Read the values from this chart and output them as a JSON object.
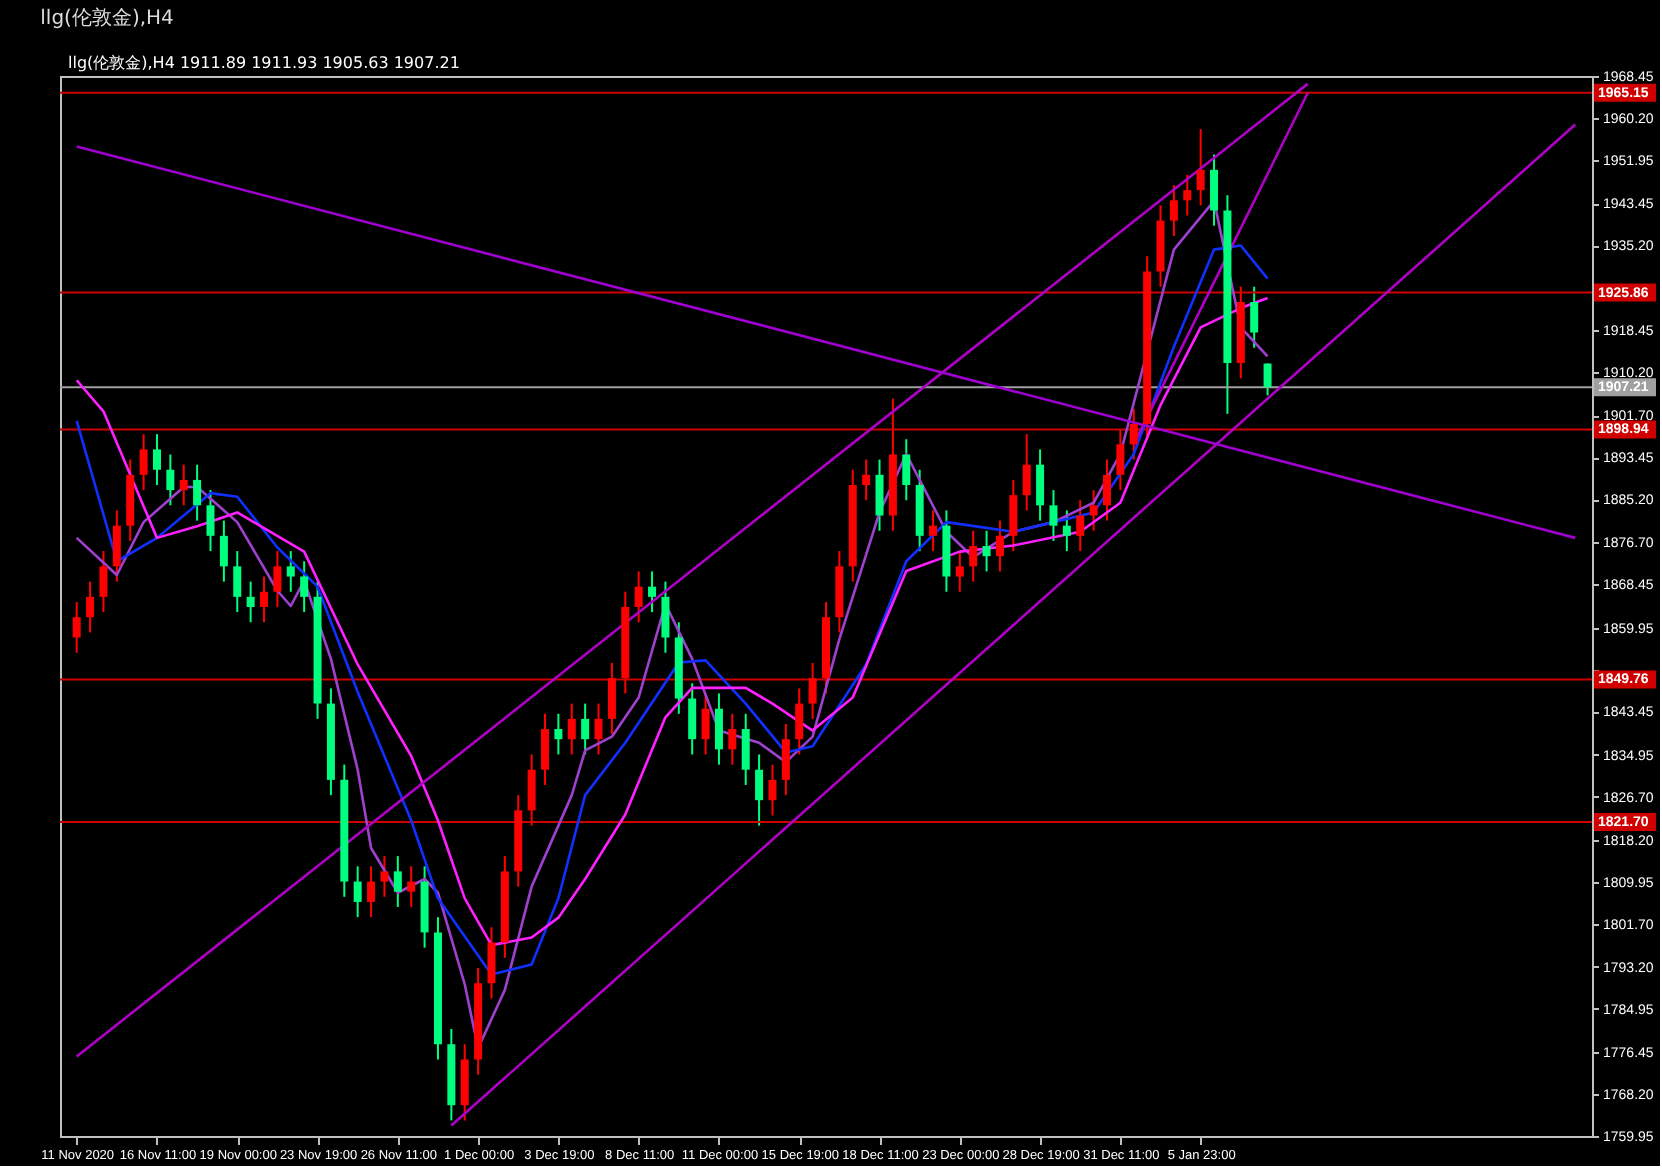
{
  "chart_data": {
    "type": "candlestick",
    "title": "llg(伦敦金),H4",
    "annotations": [
      "llg(伦敦金),H4  1911.89 1911.93 1905.63 1907.21"
    ],
    "categories": [
      "11 Nov 2020",
      null,
      null,
      null,
      null,
      null,
      "16 Nov 11:00",
      null,
      null,
      null,
      null,
      null,
      "19 Nov 00:00",
      null,
      null,
      null,
      null,
      null,
      "23 Nov 19:00",
      null,
      null,
      null,
      null,
      null,
      "26 Nov 11:00",
      null,
      null,
      null,
      null,
      null,
      "1 Dec 00:00",
      null,
      null,
      null,
      null,
      null,
      "3 Dec 19:00",
      null,
      null,
      null,
      null,
      null,
      "8 Dec 11:00",
      null,
      null,
      null,
      null,
      null,
      "11 Dec 00:00",
      null,
      null,
      null,
      null,
      null,
      "15 Dec 19:00",
      null,
      null,
      null,
      null,
      null,
      "18 Dec 11:00",
      null,
      null,
      null,
      null,
      null,
      "23 Dec 00:00",
      null,
      null,
      null,
      null,
      null,
      "28 Dec 19:00",
      null,
      null,
      null,
      null,
      null,
      "31 Dec 11:00",
      null,
      null,
      null,
      null,
      null,
      "5 Jan 23:00",
      null,
      null,
      null,
      null,
      null,
      null,
      null,
      null,
      null,
      null,
      null,
      null,
      null,
      null,
      null,
      null,
      null,
      null,
      null,
      null,
      null,
      null,
      null,
      null,
      null,
      null,
      null,
      null
    ],
    "ohlc": [
      [
        1858,
        1865,
        1855,
        1862
      ],
      [
        1862,
        1869,
        1859,
        1866
      ],
      [
        1866,
        1875,
        1863,
        1872
      ],
      [
        1872,
        1883,
        1869,
        1880
      ],
      [
        1880,
        1893,
        1877,
        1890
      ],
      [
        1890,
        1898,
        1887,
        1895
      ],
      [
        1895,
        1898,
        1888,
        1891
      ],
      [
        1891,
        1894,
        1884,
        1887
      ],
      [
        1887,
        1892,
        1884,
        1889
      ],
      [
        1889,
        1892,
        1881,
        1884
      ],
      [
        1884,
        1887,
        1875,
        1878
      ],
      [
        1878,
        1881,
        1869,
        1872
      ],
      [
        1872,
        1875,
        1863,
        1866
      ],
      [
        1866,
        1869,
        1861,
        1864
      ],
      [
        1864,
        1870,
        1861,
        1867
      ],
      [
        1867,
        1875,
        1864,
        1872
      ],
      [
        1872,
        1875,
        1867,
        1870
      ],
      [
        1870,
        1873,
        1863,
        1866
      ],
      [
        1866,
        1869,
        1842,
        1845
      ],
      [
        1845,
        1848,
        1827,
        1830
      ],
      [
        1830,
        1833,
        1807,
        1810
      ],
      [
        1810,
        1813,
        1803,
        1806
      ],
      [
        1806,
        1813,
        1803,
        1810
      ],
      [
        1810,
        1815,
        1807,
        1812
      ],
      [
        1812,
        1815,
        1805,
        1808
      ],
      [
        1808,
        1813,
        1805,
        1810
      ],
      [
        1810,
        1813,
        1797,
        1800
      ],
      [
        1800,
        1803,
        1775,
        1778
      ],
      [
        1778,
        1781,
        1763,
        1766
      ],
      [
        1766,
        1778,
        1763,
        1775
      ],
      [
        1775,
        1793,
        1772,
        1790
      ],
      [
        1790,
        1801,
        1787,
        1798
      ],
      [
        1798,
        1815,
        1795,
        1812
      ],
      [
        1812,
        1827,
        1809,
        1824
      ],
      [
        1824,
        1835,
        1821,
        1832
      ],
      [
        1832,
        1843,
        1829,
        1840
      ],
      [
        1840,
        1843,
        1835,
        1838
      ],
      [
        1838,
        1845,
        1835,
        1842
      ],
      [
        1842,
        1845,
        1835,
        1838
      ],
      [
        1838,
        1845,
        1835,
        1842
      ],
      [
        1842,
        1853,
        1839,
        1850
      ],
      [
        1850,
        1867,
        1847,
        1864
      ],
      [
        1864,
        1871,
        1861,
        1868
      ],
      [
        1868,
        1871,
        1863,
        1866
      ],
      [
        1866,
        1869,
        1855,
        1858
      ],
      [
        1858,
        1861,
        1843,
        1846
      ],
      [
        1846,
        1849,
        1835,
        1838
      ],
      [
        1838,
        1847,
        1835,
        1844
      ],
      [
        1844,
        1847,
        1833,
        1836
      ],
      [
        1836,
        1843,
        1833,
        1840
      ],
      [
        1840,
        1843,
        1829,
        1832
      ],
      [
        1832,
        1835,
        1821,
        1826
      ],
      [
        1826,
        1833,
        1823,
        1830
      ],
      [
        1830,
        1841,
        1827,
        1838
      ],
      [
        1838,
        1848,
        1835,
        1845
      ],
      [
        1845,
        1853,
        1842,
        1850
      ],
      [
        1850,
        1865,
        1847,
        1862
      ],
      [
        1862,
        1875,
        1859,
        1872
      ],
      [
        1872,
        1891,
        1869,
        1888
      ],
      [
        1888,
        1893,
        1885,
        1890
      ],
      [
        1890,
        1893,
        1879,
        1882
      ],
      [
        1882,
        1905,
        1879,
        1894
      ],
      [
        1894,
        1897,
        1885,
        1888
      ],
      [
        1888,
        1891,
        1875,
        1878
      ],
      [
        1878,
        1883,
        1875,
        1880
      ],
      [
        1880,
        1883,
        1867,
        1870
      ],
      [
        1870,
        1875,
        1867,
        1872
      ],
      [
        1872,
        1879,
        1869,
        1876
      ],
      [
        1876,
        1879,
        1871,
        1874
      ],
      [
        1874,
        1881,
        1871,
        1878
      ],
      [
        1878,
        1889,
        1875,
        1886
      ],
      [
        1886,
        1898,
        1883,
        1892
      ],
      [
        1892,
        1895,
        1881,
        1884
      ],
      [
        1884,
        1887,
        1877,
        1880
      ],
      [
        1880,
        1883,
        1875,
        1878
      ],
      [
        1878,
        1885,
        1875,
        1882
      ],
      [
        1882,
        1887,
        1879,
        1884
      ],
      [
        1884,
        1893,
        1881,
        1890
      ],
      [
        1890,
        1899,
        1887,
        1896
      ],
      [
        1896,
        1903,
        1893,
        1900
      ],
      [
        1900,
        1933,
        1897,
        1930
      ],
      [
        1930,
        1943,
        1927,
        1940
      ],
      [
        1940,
        1947,
        1937,
        1944
      ],
      [
        1944,
        1949,
        1941,
        1946
      ],
      [
        1946,
        1958,
        1943,
        1950
      ],
      [
        1950,
        1953,
        1939,
        1942
      ],
      [
        1942,
        1945,
        1902,
        1912
      ],
      [
        1912,
        1927,
        1909,
        1924
      ],
      [
        1924,
        1927,
        1915,
        1918
      ],
      [
        1911.89,
        1911.93,
        1905.63,
        1907.21
      ],
      null,
      null,
      null,
      null,
      null,
      null,
      null,
      null,
      null,
      null,
      null,
      null,
      null,
      null,
      null,
      null,
      null,
      null,
      null,
      null,
      null,
      null,
      null
    ],
    "colors": [
      "#ff0000",
      "#ff0000",
      "#ff0000",
      "#ff0000",
      "#ff0000",
      "#ff0000",
      "#00ff7f",
      "#00ff7f",
      "#ff0000",
      "#00ff7f",
      "#00ff7f",
      "#00ff7f",
      "#00ff7f",
      "#00ff7f",
      "#ff0000",
      "#ff0000",
      "#00ff7f",
      "#00ff7f",
      "#00ff7f",
      "#00ff7f",
      "#00ff7f",
      "#00ff7f",
      "#ff0000",
      "#ff0000",
      "#00ff7f",
      "#ff0000",
      "#00ff7f",
      "#00ff7f",
      "#00ff7f",
      "#ff0000",
      "#ff0000",
      "#ff0000",
      "#ff0000",
      "#ff0000",
      "#ff0000",
      "#ff0000",
      "#00ff7f",
      "#ff0000",
      "#00ff7f",
      "#ff0000",
      "#ff0000",
      "#ff0000",
      "#ff0000",
      "#00ff7f",
      "#00ff7f",
      "#00ff7f",
      "#00ff7f",
      "#ff0000",
      "#00ff7f",
      "#ff0000",
      "#00ff7f",
      "#00ff7f",
      "#ff0000",
      "#ff0000",
      "#ff0000",
      "#ff0000",
      "#ff0000",
      "#ff0000",
      "#ff0000",
      "#ff0000",
      "#00ff7f",
      "#ff0000",
      "#00ff7f",
      "#00ff7f",
      "#ff0000",
      "#00ff7f",
      "#ff0000",
      "#ff0000",
      "#00ff7f",
      "#ff0000",
      "#ff0000",
      "#ff0000",
      "#00ff7f",
      "#00ff7f",
      "#00ff7f",
      "#ff0000",
      "#ff0000",
      "#ff0000",
      "#ff0000",
      "#ff0000",
      "#ff0000",
      "#ff0000",
      "#ff0000",
      "#ff0000",
      "#ff0000",
      "#00ff7f",
      "#00ff7f",
      "#ff0000",
      "#00ff7f",
      "#00ff7f",
      null,
      null,
      null,
      null,
      null,
      null,
      null,
      null,
      null,
      null,
      null,
      null,
      null,
      null,
      null,
      null,
      null,
      null,
      null,
      null,
      null,
      null,
      null
    ],
    "series": [
      {
        "type": "line",
        "color": "#a040d0",
        "values": [
          1877.6,
          null,
          null,
          1870.3,
          null,
          1880.7,
          null,
          null,
          1887.6,
          1887.6,
          null,
          null,
          1880.7,
          null,
          null,
          1867.2,
          1864.2,
          1869.2,
          null,
          1853.8,
          null,
          1832.0,
          1816.6,
          null,
          1807.8,
          null,
          1810.5,
          1807.8,
          null,
          1789.8,
          1777.2,
          null,
          1788.7,
          null,
          1809.0,
          null,
          null,
          1827.0,
          1835.8,
          null,
          1838.5,
          null,
          1846.2,
          null,
          1864.6,
          null,
          1853.8,
          null,
          1839.7,
          null,
          null,
          1837.3,
          null,
          1833.5,
          null,
          1838.5,
          null,
          1857.7,
          null,
          null,
          1882.6,
          null,
          1894.1,
          null,
          null,
          1878.8,
          null,
          1873.8,
          null,
          null,
          1878.8,
          null,
          null,
          1880.7,
          null,
          null,
          1884.5,
          null,
          1894.1,
          null,
          null,
          null,
          1934.3,
          null,
          null,
          1943.9,
          null,
          1919.0,
          null,
          1913.3,
          null,
          null,
          null,
          null,
          null,
          null,
          null,
          null,
          null,
          null,
          null,
          null,
          null,
          null,
          null,
          null,
          null,
          null,
          null,
          null,
          null,
          null,
          null
        ]
      },
      {
        "type": "line",
        "color": "#1030ff",
        "values": [
          1900.6,
          null,
          null,
          1873.0,
          null,
          null,
          1877.6,
          null,
          null,
          null,
          1886.4,
          null,
          1885.7,
          null,
          null,
          1875.7,
          null,
          null,
          1868.0,
          null,
          null,
          1847.3,
          null,
          null,
          null,
          1822.0,
          null,
          1806.7,
          null,
          null,
          null,
          1791.7,
          null,
          null,
          1793.7,
          null,
          1806.7,
          null,
          1827.0,
          null,
          null,
          1837.3,
          null,
          null,
          null,
          1853.1,
          null,
          1853.5,
          null,
          null,
          1845.0,
          null,
          null,
          1835.4,
          null,
          1836.6,
          null,
          null,
          null,
          1852.7,
          null,
          null,
          1873.0,
          null,
          null,
          1880.7,
          null,
          null,
          null,
          null,
          1878.8,
          null,
          null,
          null,
          null,
          null,
          1882.6,
          null,
          null,
          1894.1,
          null,
          null,
          1915.2,
          null,
          null,
          1934.3,
          null,
          1935.1,
          null,
          1928.6,
          null,
          null,
          null,
          null,
          null,
          null,
          null,
          null,
          null,
          null,
          null,
          null,
          null,
          null,
          null,
          null,
          null,
          null,
          null,
          null,
          null,
          null,
          null
        ]
      },
      {
        "type": "line",
        "color": "#ff20ff",
        "values": [
          1908.6,
          null,
          1902.5,
          null,
          null,
          null,
          1877.6,
          null,
          null,
          1879.9,
          null,
          null,
          1882.6,
          null,
          null,
          null,
          null,
          1874.9,
          null,
          null,
          null,
          1852.7,
          null,
          null,
          null,
          1834.7,
          null,
          1822.0,
          null,
          1806.7,
          null,
          1797.5,
          null,
          null,
          1799.0,
          null,
          1802.9,
          null,
          1810.5,
          null,
          null,
          1823.2,
          null,
          null,
          1842.3,
          null,
          1848.1,
          null,
          null,
          null,
          1848.1,
          null,
          1845.0,
          null,
          null,
          1839.7,
          null,
          null,
          1846.2,
          null,
          null,
          null,
          1871.1,
          null,
          null,
          null,
          1874.9,
          null,
          null,
          null,
          1876.1,
          null,
          null,
          null,
          null,
          1878.8,
          null,
          null,
          1884.5,
          null,
          null,
          1903.7,
          null,
          null,
          1919.0,
          null,
          null,
          1922.8,
          null,
          1924.8,
          null,
          null,
          null,
          null,
          null,
          null,
          null,
          null,
          null,
          null,
          null,
          null,
          null,
          null,
          null,
          null,
          null,
          null,
          null,
          null,
          null,
          null,
          null
        ]
      },
      {
        "type": "line",
        "color": "#b000c8",
        "values": [
          1775.6,
          null,
          null,
          null,
          null,
          null,
          null,
          null,
          null,
          null,
          null,
          null,
          null,
          null,
          null,
          null,
          null,
          null,
          null,
          null,
          null,
          null,
          null,
          null,
          null,
          null,
          null,
          null,
          null,
          null,
          null,
          null,
          null,
          null,
          null,
          null,
          null,
          null,
          null,
          null,
          null,
          null,
          null,
          null,
          null,
          null,
          null,
          null,
          null,
          null,
          null,
          null,
          null,
          null,
          null,
          null,
          null,
          null,
          null,
          null,
          null,
          null,
          null,
          null,
          null,
          null,
          null,
          null,
          null,
          null,
          null,
          null,
          null,
          null,
          null,
          null,
          null,
          null,
          null,
          null,
          null,
          null,
          null,
          null,
          null,
          null,
          null,
          null,
          null,
          null,
          null,
          null,
          1966.9,
          null,
          null,
          null,
          null,
          null,
          null,
          null,
          null,
          null,
          null,
          null,
          null,
          null,
          null,
          null,
          null,
          null,
          null,
          null,
          null
        ]
      },
      {
        "type": "line",
        "color": "#b000c8",
        "values": [
          null,
          null,
          null,
          null,
          null,
          null,
          null,
          null,
          null,
          null,
          null,
          null,
          null,
          null,
          null,
          null,
          null,
          null,
          null,
          null,
          null,
          null,
          null,
          null,
          null,
          null,
          null,
          null,
          1762.0,
          null,
          null,
          null,
          null,
          null,
          null,
          null,
          null,
          null,
          null,
          null,
          null,
          null,
          null,
          null,
          null,
          null,
          null,
          null,
          null,
          null,
          null,
          null,
          null,
          null,
          null,
          null,
          null,
          null,
          null,
          null,
          null,
          null,
          null,
          null,
          null,
          null,
          null,
          null,
          null,
          null,
          null,
          null,
          null,
          null,
          null,
          null,
          null,
          null,
          null,
          null,
          null,
          null,
          null,
          null,
          null,
          null,
          null,
          null,
          null,
          null,
          null,
          null,
          null,
          null,
          null,
          null,
          null,
          null,
          null,
          null,
          null,
          null,
          null,
          null,
          null,
          null,
          null,
          null,
          null,
          null,
          null,
          null,
          1958.9
        ]
      },
      {
        "type": "line",
        "color": "#b000c8",
        "values": [
          null,
          null,
          null,
          null,
          null,
          null,
          null,
          null,
          null,
          null,
          null,
          null,
          null,
          null,
          null,
          null,
          null,
          null,
          null,
          null,
          null,
          null,
          null,
          null,
          null,
          null,
          null,
          null,
          null,
          null,
          null,
          null,
          null,
          null,
          null,
          null,
          null,
          null,
          null,
          null,
          null,
          null,
          null,
          null,
          null,
          null,
          null,
          null,
          null,
          null,
          null,
          null,
          null,
          null,
          null,
          null,
          null,
          null,
          null,
          null,
          null,
          null,
          null,
          null,
          null,
          null,
          null,
          null,
          null,
          null,
          null,
          null,
          null,
          null,
          null,
          null,
          null,
          null,
          null,
          1896.0,
          null,
          null,
          null,
          null,
          null,
          null,
          null,
          null,
          null,
          null,
          null,
          null,
          1965.1,
          null,
          null,
          null,
          null,
          null,
          null,
          null,
          null,
          null,
          null,
          null,
          null,
          null,
          null,
          null,
          null,
          null,
          null,
          null,
          null
        ]
      },
      {
        "type": "line",
        "color": "#a000d0",
        "values": [
          1954.6,
          null,
          null,
          null,
          null,
          null,
          null,
          null,
          null,
          null,
          null,
          null,
          null,
          null,
          null,
          null,
          null,
          null,
          null,
          null,
          null,
          null,
          null,
          null,
          null,
          null,
          null,
          null,
          null,
          null,
          null,
          null,
          null,
          null,
          null,
          null,
          null,
          null,
          null,
          null,
          null,
          null,
          null,
          null,
          null,
          null,
          null,
          null,
          null,
          null,
          null,
          null,
          null,
          null,
          null,
          null,
          null,
          null,
          null,
          null,
          null,
          null,
          null,
          null,
          null,
          null,
          null,
          null,
          null,
          null,
          null,
          null,
          null,
          null,
          null,
          null,
          null,
          null,
          null,
          null,
          null,
          null,
          null,
          null,
          null,
          null,
          null,
          null,
          null,
          null,
          null,
          null,
          null,
          null,
          null,
          null,
          null,
          null,
          null,
          null,
          null,
          null,
          null,
          null,
          null,
          null,
          null,
          null,
          null,
          null,
          null,
          null,
          1877.6
        ]
      }
    ],
    "ref_lines": [
      {
        "axis": "y",
        "value": 1965.15,
        "label": "1965.15",
        "color": "#d00000"
      },
      {
        "axis": "y",
        "value": 1925.86,
        "label": "1925.86",
        "color": "#d00000"
      },
      {
        "axis": "y",
        "value": 1907.21,
        "label": "1907.21",
        "color": "#a0a0a0"
      },
      {
        "axis": "y",
        "value": 1898.94,
        "label": "1898.94",
        "color": "#d00000"
      },
      {
        "axis": "y",
        "value": 1849.76,
        "label": "1849.76",
        "color": "#d00000"
      },
      {
        "axis": "y",
        "value": 1821.7,
        "label": "1821.70",
        "color": "#d00000"
      }
    ],
    "ylim": [
      1759.95,
      1968.45
    ],
    "yticks": [
      {
        "value": 1759.95,
        "label": "1759.95"
      },
      {
        "value": 1768.2,
        "label": "1768.20"
      },
      {
        "value": 1776.45,
        "label": "1776.45"
      },
      {
        "value": 1784.95,
        "label": "1784.95"
      },
      {
        "value": 1793.2,
        "label": "1793.20"
      },
      {
        "value": 1801.7,
        "label": "1801.70"
      },
      {
        "value": 1809.95,
        "label": "1809.95"
      },
      {
        "value": 1818.2,
        "label": "1818.20"
      },
      {
        "value": 1826.7,
        "label": "1826.70"
      },
      {
        "value": 1834.95,
        "label": "1834.95"
      },
      {
        "value": 1843.45,
        "label": "1843.45"
      },
      {
        "value": 1851.7,
        "label": null
      },
      {
        "value": 1859.95,
        "label": "1859.95"
      },
      {
        "value": 1868.45,
        "label": "1868.45"
      },
      {
        "value": 1876.7,
        "label": "1876.70"
      },
      {
        "value": 1885.2,
        "label": "1885.20"
      },
      {
        "value": 1893.45,
        "label": "1893.45"
      },
      {
        "value": 1901.7,
        "label": "1901.70"
      },
      {
        "value": 1910.2,
        "label": "1910.20"
      },
      {
        "value": 1918.45,
        "label": "1918.45"
      },
      {
        "value": 1935.2,
        "label": "1935.20"
      },
      {
        "value": 1943.45,
        "label": "1943.45"
      },
      {
        "value": 1951.95,
        "label": "1951.95"
      },
      {
        "value": 1960.2,
        "label": "1960.20"
      },
      {
        "value": 1968.45,
        "label": "1968.45"
      }
    ],
    "grid": false
  }
}
